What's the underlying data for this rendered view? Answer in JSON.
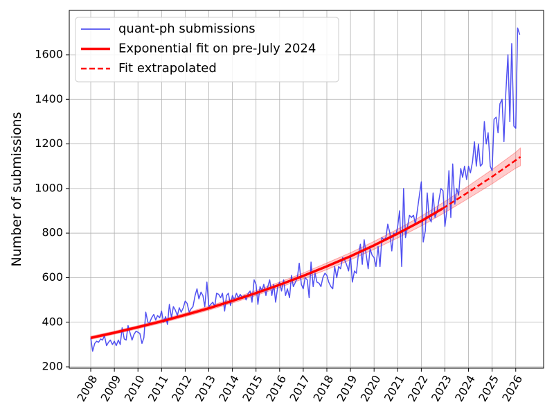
{
  "chart_data": {
    "type": "line",
    "ylabel": "Number of submissions",
    "xlim": [
      2007.09,
      2027.18
    ],
    "ylim": [
      194,
      1799
    ],
    "xticks": [
      2008,
      2009,
      2010,
      2011,
      2012,
      2013,
      2014,
      2015,
      2016,
      2017,
      2018,
      2019,
      2020,
      2021,
      2022,
      2023,
      2024,
      2025,
      2026
    ],
    "yticks": [
      200,
      400,
      600,
      800,
      1000,
      1200,
      1400,
      1600
    ],
    "grid": true,
    "legend": "upper left",
    "series": [
      {
        "name": "quant-ph submissions",
        "color": "#3333ee",
        "style": "solid",
        "width": 1.5,
        "x": [
          2008,
          2008.08,
          2008.17,
          2008.25,
          2008.33,
          2008.42,
          2008.5,
          2008.58,
          2008.67,
          2008.75,
          2008.83,
          2008.92,
          2009,
          2009.08,
          2009.17,
          2009.25,
          2009.33,
          2009.42,
          2009.5,
          2009.58,
          2009.67,
          2009.75,
          2009.83,
          2009.92,
          2010,
          2010.08,
          2010.17,
          2010.25,
          2010.33,
          2010.42,
          2010.5,
          2010.58,
          2010.67,
          2010.75,
          2010.83,
          2010.92,
          2011,
          2011.08,
          2011.17,
          2011.25,
          2011.33,
          2011.42,
          2011.5,
          2011.58,
          2011.67,
          2011.75,
          2011.83,
          2011.92,
          2012,
          2012.08,
          2012.17,
          2012.25,
          2012.33,
          2012.42,
          2012.5,
          2012.58,
          2012.67,
          2012.75,
          2012.83,
          2012.92,
          2013,
          2013.08,
          2013.17,
          2013.25,
          2013.33,
          2013.42,
          2013.5,
          2013.58,
          2013.67,
          2013.75,
          2013.83,
          2013.92,
          2014,
          2014.08,
          2014.17,
          2014.25,
          2014.33,
          2014.42,
          2014.5,
          2014.58,
          2014.67,
          2014.75,
          2014.83,
          2014.92,
          2015,
          2015.08,
          2015.17,
          2015.25,
          2015.33,
          2015.42,
          2015.5,
          2015.58,
          2015.67,
          2015.75,
          2015.83,
          2015.92,
          2016,
          2016.08,
          2016.17,
          2016.25,
          2016.33,
          2016.42,
          2016.5,
          2016.58,
          2016.67,
          2016.75,
          2016.83,
          2016.92,
          2017,
          2017.08,
          2017.17,
          2017.25,
          2017.33,
          2017.42,
          2017.5,
          2017.58,
          2017.67,
          2017.75,
          2017.83,
          2017.92,
          2018,
          2018.08,
          2018.17,
          2018.25,
          2018.33,
          2018.42,
          2018.5,
          2018.58,
          2018.67,
          2018.75,
          2018.83,
          2018.92,
          2019,
          2019.08,
          2019.17,
          2019.25,
          2019.33,
          2019.42,
          2019.5,
          2019.58,
          2019.67,
          2019.75,
          2019.83,
          2019.92,
          2020,
          2020.08,
          2020.17,
          2020.25,
          2020.33,
          2020.42,
          2020.5,
          2020.58,
          2020.67,
          2020.75,
          2020.83,
          2020.92,
          2021,
          2021.08,
          2021.17,
          2021.25,
          2021.33,
          2021.42,
          2021.5,
          2021.58,
          2021.67,
          2021.75,
          2021.83,
          2021.92,
          2022,
          2022.08,
          2022.17,
          2022.25,
          2022.33,
          2022.42,
          2022.5,
          2022.58,
          2022.67,
          2022.75,
          2022.83,
          2022.92,
          2023,
          2023.08,
          2023.17,
          2023.25,
          2023.33,
          2023.42,
          2023.5,
          2023.58,
          2023.67,
          2023.75,
          2023.83,
          2023.92,
          2024,
          2024.08,
          2024.17,
          2024.25,
          2024.33,
          2024.42,
          2024.5,
          2024.58,
          2024.67,
          2024.75,
          2024.83,
          2024.92,
          2025,
          2025.08,
          2025.17,
          2025.25,
          2025.33,
          2025.42,
          2025.5,
          2025.58,
          2025.67,
          2025.75,
          2025.83,
          2025.92,
          2026,
          2026.08,
          2026.17
        ],
        "values": [
          330,
          270,
          305,
          315,
          310,
          325,
          320,
          340,
          295,
          310,
          320,
          300,
          315,
          295,
          320,
          300,
          375,
          325,
          320,
          385,
          350,
          320,
          345,
          360,
          355,
          350,
          305,
          330,
          445,
          400,
          400,
          420,
          435,
          410,
          430,
          420,
          450,
          400,
          425,
          390,
          480,
          420,
          470,
          455,
          430,
          465,
          445,
          465,
          495,
          485,
          445,
          460,
          470,
          520,
          550,
          505,
          535,
          520,
          470,
          580,
          470,
          480,
          490,
          470,
          530,
          525,
          510,
          530,
          450,
          520,
          530,
          475,
          520,
          500,
          530,
          510,
          525,
          510,
          520,
          500,
          530,
          540,
          490,
          590,
          570,
          480,
          560,
          540,
          570,
          520,
          560,
          590,
          520,
          570,
          490,
          560,
          580,
          540,
          590,
          520,
          550,
          510,
          610,
          560,
          580,
          600,
          665,
          570,
          550,
          600,
          590,
          510,
          670,
          560,
          620,
          580,
          575,
          560,
          600,
          620,
          610,
          580,
          560,
          550,
          650,
          600,
          650,
          640,
          690,
          680,
          660,
          630,
          700,
          580,
          630,
          620,
          700,
          750,
          660,
          770,
          700,
          640,
          730,
          700,
          690,
          650,
          740,
          650,
          780,
          770,
          780,
          840,
          800,
          720,
          800,
          790,
          830,
          900,
          650,
          1000,
          780,
          830,
          880,
          870,
          880,
          840,
          900,
          970,
          1030,
          760,
          810,
          980,
          870,
          850,
          980,
          870,
          900,
          950,
          1000,
          990,
          830,
          900,
          1080,
          870,
          1110,
          930,
          1000,
          970,
          1090,
          1050,
          1100,
          1040,
          1100,
          1070,
          1120,
          1210,
          1100,
          1200,
          1100,
          1110,
          1300,
          1200,
          1250,
          1100,
          1080,
          1310,
          1320,
          1250,
          1380,
          1400,
          1210,
          1430,
          1600,
          1300,
          1650,
          1280,
          1270,
          1720,
          1690
        ]
      },
      {
        "name": "Exponential fit on pre-July 2024",
        "color": "#ff0000",
        "style": "solid",
        "width": 3.5,
        "x": [
          2008,
          2009,
          2010,
          2011,
          2012,
          2013,
          2014,
          2015,
          2016,
          2017,
          2018,
          2019,
          2020,
          2021,
          2022,
          2022.9
        ],
        "values": [
          330,
          353,
          378,
          404,
          433,
          463,
          496,
          531,
          568,
          608,
          651,
          696,
          745,
          798,
          854,
          910
        ]
      },
      {
        "name": "Fit extrapolated",
        "color": "#ff0000",
        "style": "dashed",
        "width": 2.5,
        "x": [
          2022.9,
          2024,
          2025,
          2026,
          2026.2
        ],
        "values": [
          910,
          984,
          1053,
          1127,
          1142
        ]
      }
    ],
    "band": {
      "color": "#ff0000",
      "x": [
        2008,
        2009,
        2010,
        2011,
        2012,
        2013,
        2014,
        2015,
        2016,
        2017,
        2018,
        2019,
        2020,
        2021,
        2022,
        2023,
        2024,
        2025,
        2026,
        2026.2
      ],
      "lower": [
        323,
        346,
        371,
        396,
        425,
        454,
        486,
        520,
        556,
        595,
        636,
        680,
        727,
        778,
        832,
        892,
        956,
        1021,
        1091,
        1102
      ],
      "upper": [
        337,
        360,
        385,
        412,
        441,
        472,
        506,
        542,
        580,
        621,
        666,
        712,
        763,
        818,
        876,
        942,
        1012,
        1085,
        1163,
        1182
      ]
    }
  }
}
